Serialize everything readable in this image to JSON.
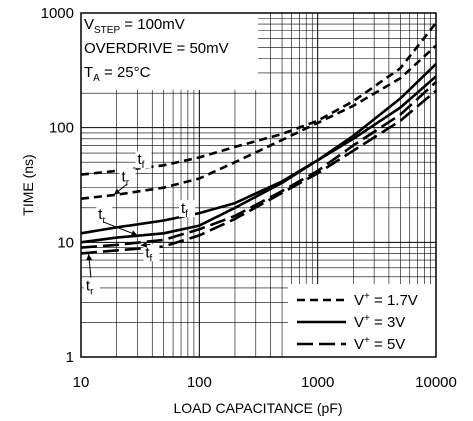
{
  "chart_data": {
    "type": "line",
    "xlabel": "LOAD CAPACITANCE (pF)",
    "ylabel": "TIME (ns)",
    "x_scale": "log",
    "y_scale": "log",
    "xlim": [
      10,
      10000
    ],
    "ylim": [
      1,
      1000
    ],
    "grid": true,
    "x_ticks": [
      {
        "value": 10,
        "label": "10"
      },
      {
        "value": 100,
        "label": "100"
      },
      {
        "value": 1000,
        "label": "1000"
      },
      {
        "value": 10000,
        "label": "10000"
      }
    ],
    "y_ticks": [
      {
        "value": 1,
        "label": "1"
      },
      {
        "value": 10,
        "label": "10"
      },
      {
        "value": 100,
        "label": "100"
      },
      {
        "value": 1000,
        "label": "1000"
      }
    ],
    "conditions": {
      "line1": {
        "main": "V",
        "sub": "STEP",
        "rest": " = 100mV"
      },
      "line2": {
        "main": "OVERDRIVE = 50mV"
      },
      "line3": {
        "main": "T",
        "sub": "A",
        "rest": " = 25°C"
      }
    },
    "legend": {
      "placement": "bottom-right",
      "entries": [
        {
          "style": "short-dash",
          "prefix": "V",
          "sup": "+",
          "rest": " = 1.7V"
        },
        {
          "style": "solid",
          "prefix": "V",
          "sup": "+",
          "rest": " = 3V"
        },
        {
          "style": "long-dash",
          "prefix": "V",
          "sup": "+",
          "rest": " = 5V"
        }
      ]
    },
    "series": [
      {
        "group": "V+ = 1.7V",
        "curve": "tf",
        "style": "short-dash",
        "x": [
          10,
          20,
          50,
          100,
          200,
          500,
          1000,
          2000,
          5000,
          10000
        ],
        "y": [
          39,
          42,
          47,
          55,
          68,
          88,
          115,
          170,
          330,
          820
        ]
      },
      {
        "group": "V+ = 1.7V",
        "curve": "tr",
        "style": "short-dash",
        "x": [
          10,
          20,
          50,
          100,
          200,
          500,
          1000,
          2000,
          5000,
          10000
        ],
        "y": [
          24,
          26,
          30,
          36,
          50,
          78,
          110,
          155,
          270,
          520
        ]
      },
      {
        "group": "V+ = 3V",
        "curve": "tf",
        "style": "solid",
        "x": [
          10,
          20,
          50,
          100,
          200,
          500,
          1000,
          2000,
          5000,
          10000
        ],
        "y": [
          12,
          13.5,
          15.5,
          18,
          22,
          34,
          52,
          85,
          180,
          360
        ]
      },
      {
        "group": "V+ = 3V",
        "curve": "tr",
        "style": "solid",
        "x": [
          10,
          20,
          50,
          100,
          200,
          500,
          1000,
          2000,
          5000,
          10000
        ],
        "y": [
          10,
          11,
          12,
          14,
          20,
          33,
          52,
          80,
          150,
          280
        ]
      },
      {
        "group": "V+ = 5V",
        "curve": "tf",
        "style": "long-dash",
        "x": [
          10,
          20,
          50,
          100,
          200,
          500,
          1000,
          2000,
          5000,
          10000
        ],
        "y": [
          9,
          9.5,
          10.5,
          13,
          17,
          28,
          42,
          70,
          130,
          250
        ]
      },
      {
        "group": "V+ = 5V",
        "curve": "tr",
        "style": "long-dash",
        "x": [
          10,
          20,
          50,
          100,
          200,
          500,
          1000,
          2000,
          5000,
          10000
        ],
        "y": [
          8,
          8.5,
          9.2,
          11.5,
          16,
          27,
          40,
          63,
          115,
          210
        ]
      }
    ],
    "annotations": [
      {
        "id": "ann-tf-17",
        "text": "t",
        "sub": "f",
        "x": 30,
        "y": 48,
        "arrow_to": null
      },
      {
        "id": "ann-tr-17",
        "text": "t",
        "sub": "r",
        "x": 22,
        "y": 34,
        "arrow_to": {
          "x": 19,
          "y": 26
        }
      },
      {
        "id": "ann-tr-3",
        "text": "t",
        "sub": "r",
        "x": 14,
        "y": 16,
        "arrow_to": {
          "x": 30,
          "y": 11.5
        }
      },
      {
        "id": "ann-tf-3",
        "text": "t",
        "sub": "f",
        "x": 70,
        "y": 18,
        "arrow_to": null
      },
      {
        "id": "ann-tf-5",
        "text": "t",
        "sub": "f",
        "x": 35,
        "y": 7.4,
        "arrow_to": {
          "x": 32,
          "y": 9.4
        }
      },
      {
        "id": "ann-tr-5",
        "text": "t",
        "sub": "r",
        "x": 11,
        "y": 3.8,
        "arrow_to": {
          "x": 11.6,
          "y": 7.9
        }
      }
    ]
  }
}
